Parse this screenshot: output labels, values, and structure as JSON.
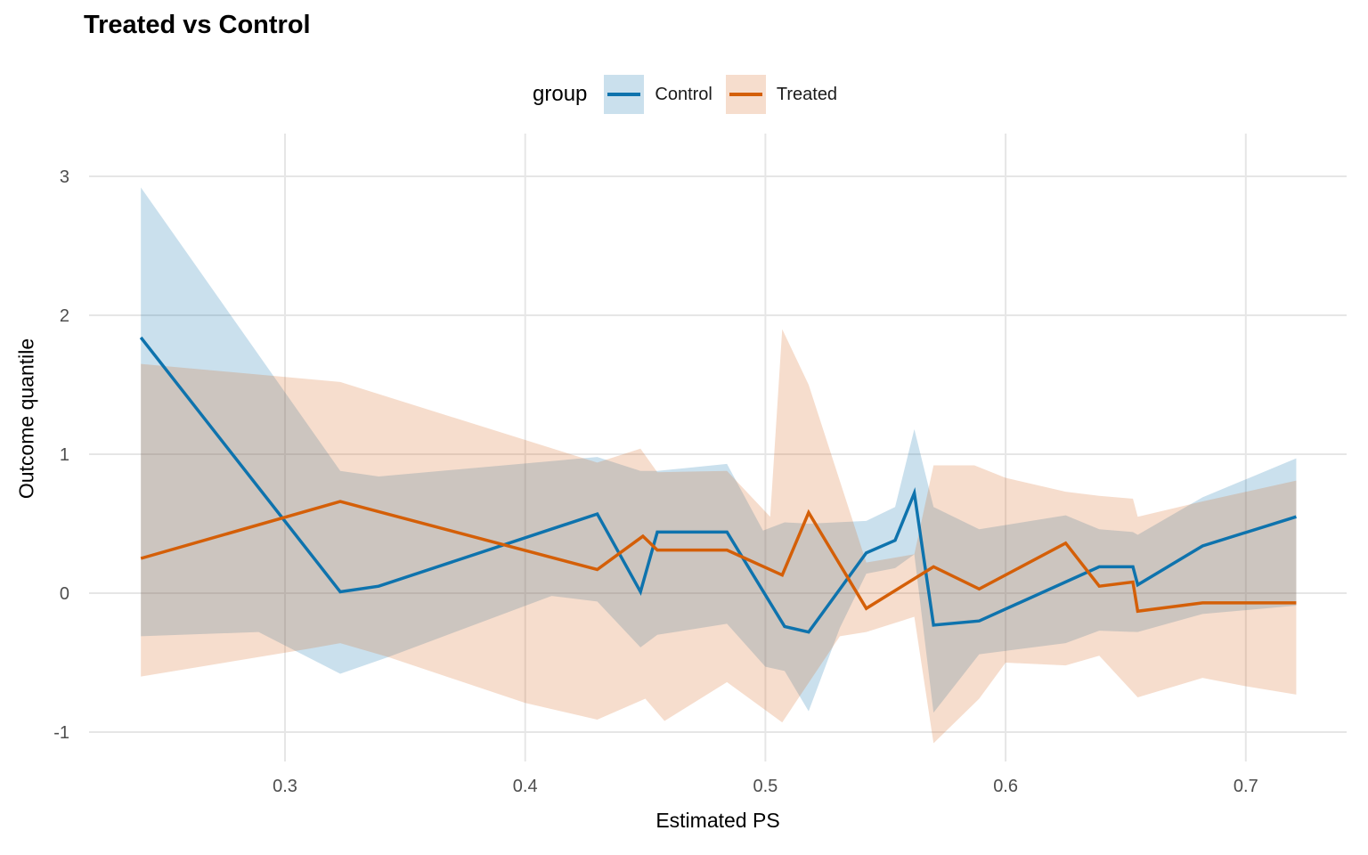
{
  "title": "Treated vs Control",
  "legend": {
    "title": "group",
    "items": [
      {
        "label": "Control"
      },
      {
        "label": "Treated"
      }
    ]
  },
  "axes": {
    "x_label": "Estimated PS",
    "y_label": "Outcome quantile"
  },
  "colors": {
    "control_line": "#0e73ad",
    "control_fill": "rgba(14,115,173,0.22)",
    "treated_line": "#d45f08",
    "treated_fill": "rgba(214,100,26,0.22)",
    "gridline": "#e6e6e6",
    "tick_text": "#4d4d4d"
  },
  "chart_data": {
    "type": "line",
    "title": "Treated vs Control",
    "xlabel": "Estimated PS",
    "ylabel": "Outcome quantile",
    "legend_title": "group",
    "legend_position": "top",
    "grid": true,
    "xlim": [
      0.218,
      0.742
    ],
    "ylim": [
      -1.21,
      3.31
    ],
    "x_ticks": [
      0.3,
      0.4,
      0.5,
      0.6,
      0.7
    ],
    "x_tick_labels": [
      "0.3",
      "0.4",
      "0.5",
      "0.6",
      "0.7"
    ],
    "y_ticks": [
      -1,
      0,
      1,
      2,
      3
    ],
    "y_tick_labels": [
      "-1",
      "0",
      "1",
      "2",
      "3"
    ],
    "series": [
      {
        "name": "Control",
        "color": "#0e73ad",
        "fill": "rgba(14,115,173,0.22)",
        "points": [
          [
            0.24,
            1.84
          ],
          [
            0.323,
            0.01
          ],
          [
            0.339,
            0.05
          ],
          [
            0.43,
            0.57
          ],
          [
            0.448,
            0.01
          ],
          [
            0.455,
            0.44
          ],
          [
            0.484,
            0.44
          ],
          [
            0.508,
            -0.24
          ],
          [
            0.518,
            -0.28
          ],
          [
            0.542,
            0.29
          ],
          [
            0.554,
            0.38
          ],
          [
            0.562,
            0.72
          ],
          [
            0.57,
            -0.23
          ],
          [
            0.589,
            -0.2
          ],
          [
            0.639,
            0.19
          ],
          [
            0.653,
            0.19
          ],
          [
            0.655,
            0.06
          ],
          [
            0.682,
            0.34
          ],
          [
            0.721,
            0.55
          ]
        ],
        "ribbon_upper": [
          [
            0.24,
            2.92
          ],
          [
            0.323,
            0.88
          ],
          [
            0.339,
            0.84
          ],
          [
            0.43,
            0.98
          ],
          [
            0.448,
            0.88
          ],
          [
            0.455,
            0.88
          ],
          [
            0.484,
            0.93
          ],
          [
            0.499,
            0.45
          ],
          [
            0.508,
            0.51
          ],
          [
            0.518,
            0.5
          ],
          [
            0.542,
            0.52
          ],
          [
            0.554,
            0.62
          ],
          [
            0.562,
            1.18
          ],
          [
            0.57,
            0.62
          ],
          [
            0.589,
            0.46
          ],
          [
            0.625,
            0.56
          ],
          [
            0.639,
            0.46
          ],
          [
            0.653,
            0.44
          ],
          [
            0.655,
            0.42
          ],
          [
            0.682,
            0.69
          ],
          [
            0.721,
            0.97
          ]
        ],
        "ribbon_lower": [
          [
            0.24,
            -0.31
          ],
          [
            0.289,
            -0.28
          ],
          [
            0.323,
            -0.58
          ],
          [
            0.343,
            -0.46
          ],
          [
            0.411,
            -0.02
          ],
          [
            0.43,
            -0.06
          ],
          [
            0.448,
            -0.39
          ],
          [
            0.455,
            -0.3
          ],
          [
            0.484,
            -0.22
          ],
          [
            0.5,
            -0.53
          ],
          [
            0.508,
            -0.56
          ],
          [
            0.518,
            -0.85
          ],
          [
            0.531,
            -0.25
          ],
          [
            0.542,
            0.14
          ],
          [
            0.554,
            0.18
          ],
          [
            0.562,
            0.28
          ],
          [
            0.57,
            -0.86
          ],
          [
            0.589,
            -0.44
          ],
          [
            0.625,
            -0.36
          ],
          [
            0.639,
            -0.27
          ],
          [
            0.655,
            -0.28
          ],
          [
            0.682,
            -0.15
          ],
          [
            0.721,
            -0.09
          ]
        ]
      },
      {
        "name": "Treated",
        "color": "#d45f08",
        "fill": "rgba(214,100,26,0.22)",
        "points": [
          [
            0.24,
            0.25
          ],
          [
            0.323,
            0.66
          ],
          [
            0.43,
            0.17
          ],
          [
            0.449,
            0.41
          ],
          [
            0.455,
            0.31
          ],
          [
            0.484,
            0.31
          ],
          [
            0.507,
            0.13
          ],
          [
            0.518,
            0.58
          ],
          [
            0.542,
            -0.11
          ],
          [
            0.57,
            0.19
          ],
          [
            0.589,
            0.03
          ],
          [
            0.625,
            0.36
          ],
          [
            0.639,
            0.05
          ],
          [
            0.653,
            0.08
          ],
          [
            0.655,
            -0.13
          ],
          [
            0.682,
            -0.07
          ],
          [
            0.721,
            -0.07
          ]
        ],
        "ribbon_upper": [
          [
            0.24,
            1.65
          ],
          [
            0.323,
            1.52
          ],
          [
            0.43,
            0.94
          ],
          [
            0.448,
            1.04
          ],
          [
            0.455,
            0.87
          ],
          [
            0.484,
            0.88
          ],
          [
            0.502,
            0.55
          ],
          [
            0.507,
            1.9
          ],
          [
            0.518,
            1.5
          ],
          [
            0.542,
            0.22
          ],
          [
            0.562,
            0.28
          ],
          [
            0.57,
            0.92
          ],
          [
            0.587,
            0.92
          ],
          [
            0.6,
            0.83
          ],
          [
            0.625,
            0.73
          ],
          [
            0.639,
            0.7
          ],
          [
            0.653,
            0.68
          ],
          [
            0.655,
            0.55
          ],
          [
            0.682,
            0.66
          ],
          [
            0.721,
            0.81
          ]
        ],
        "ribbon_lower": [
          [
            0.24,
            -0.6
          ],
          [
            0.31,
            -0.4
          ],
          [
            0.323,
            -0.36
          ],
          [
            0.343,
            -0.46
          ],
          [
            0.4,
            -0.79
          ],
          [
            0.43,
            -0.91
          ],
          [
            0.45,
            -0.76
          ],
          [
            0.458,
            -0.92
          ],
          [
            0.484,
            -0.64
          ],
          [
            0.507,
            -0.93
          ],
          [
            0.531,
            -0.31
          ],
          [
            0.542,
            -0.28
          ],
          [
            0.562,
            -0.17
          ],
          [
            0.57,
            -1.08
          ],
          [
            0.589,
            -0.76
          ],
          [
            0.6,
            -0.5
          ],
          [
            0.625,
            -0.52
          ],
          [
            0.639,
            -0.45
          ],
          [
            0.655,
            -0.75
          ],
          [
            0.682,
            -0.61
          ],
          [
            0.7,
            -0.67
          ],
          [
            0.721,
            -0.73
          ]
        ]
      }
    ]
  }
}
